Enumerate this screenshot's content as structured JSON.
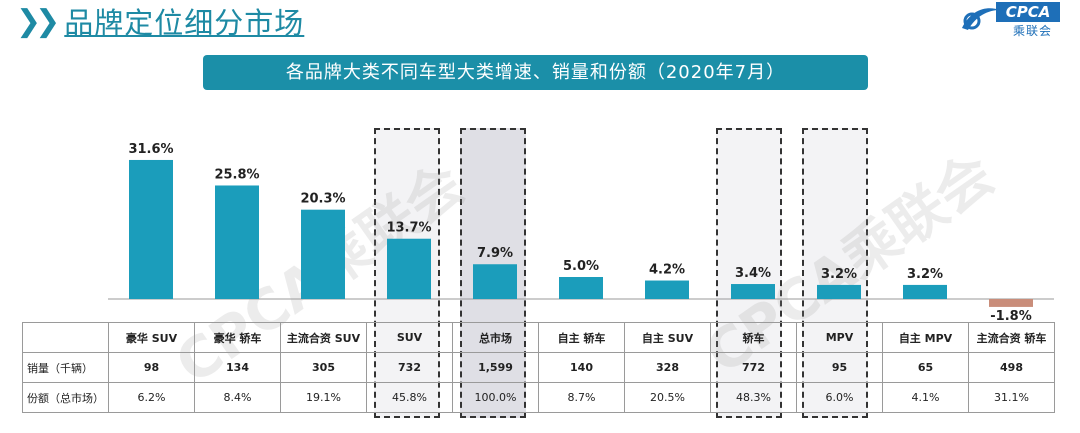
{
  "header": {
    "title": "品牌定位细分市场"
  },
  "logo": {
    "text": "CPCA",
    "sub": "乘联会"
  },
  "chart_data": {
    "type": "bar",
    "title": "各品牌大类不同车型大类增速、销量和份额（2020年7月）",
    "categories": [
      "豪华 SUV",
      "豪华 轿车",
      "主流合资 SUV",
      "SUV",
      "总市场",
      "自主 轿车",
      "自主 SUV",
      "轿车",
      "MPV",
      "自主 MPV",
      "主流合资 轿车"
    ],
    "series": [
      {
        "values": [
          31.6,
          25.8,
          20.3,
          13.7,
          7.9,
          5.0,
          4.2,
          3.4,
          3.2,
          3.2,
          -1.8
        ]
      }
    ],
    "value_labels": [
      "31.6%",
      "25.8%",
      "20.3%",
      "13.7%",
      "7.9%",
      "5.0%",
      "4.2%",
      "3.4%",
      "3.2%",
      "3.2%",
      "-1.8%"
    ],
    "colors": {
      "positive": "#1b9dbb",
      "negative": "#c98d7a"
    },
    "highlighted": [
      "SUV",
      "总市场",
      "轿车",
      "MPV"
    ],
    "table": {
      "row_labels": [
        "销量（千辆）",
        "份额（总市场）"
      ],
      "sales": [
        "98",
        "134",
        "305",
        "732",
        "1,599",
        "140",
        "328",
        "772",
        "95",
        "65",
        "498"
      ],
      "share": [
        "6.2%",
        "8.4%",
        "19.1%",
        "45.8%",
        "100.0%",
        "8.7%",
        "20.5%",
        "48.3%",
        "6.0%",
        "4.1%",
        "31.1%"
      ]
    }
  }
}
